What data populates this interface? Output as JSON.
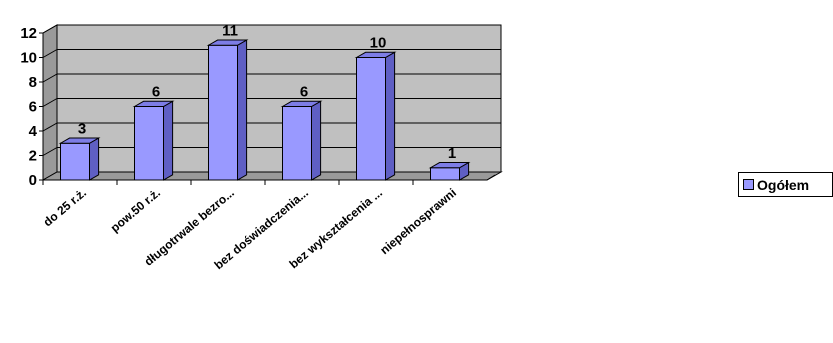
{
  "chart_data": {
    "type": "bar",
    "title": "",
    "xlabel": "",
    "ylabel": "",
    "categories": [
      "do 25 r.ż.",
      "pow.50 r.ż.",
      "długotrwale bezro...",
      "bez doświadczenia...",
      "bez wykształcenia ...",
      "niepełnosprawni"
    ],
    "series": [
      {
        "name": "Ogółem",
        "values": [
          3,
          6,
          11,
          6,
          10,
          1
        ],
        "color": "#9999ff"
      }
    ],
    "ylim": [
      0,
      12
    ],
    "yticks": [
      0,
      2,
      4,
      6,
      8,
      10,
      12
    ],
    "grid": true,
    "legend": "right",
    "style": "3d",
    "colors": {
      "bar_front": "#9999ff",
      "bar_side": "#5f5fc4",
      "bar_top": "#7d7de6",
      "wall": "#c0c0c0",
      "floor": "#9a9a9a"
    }
  }
}
